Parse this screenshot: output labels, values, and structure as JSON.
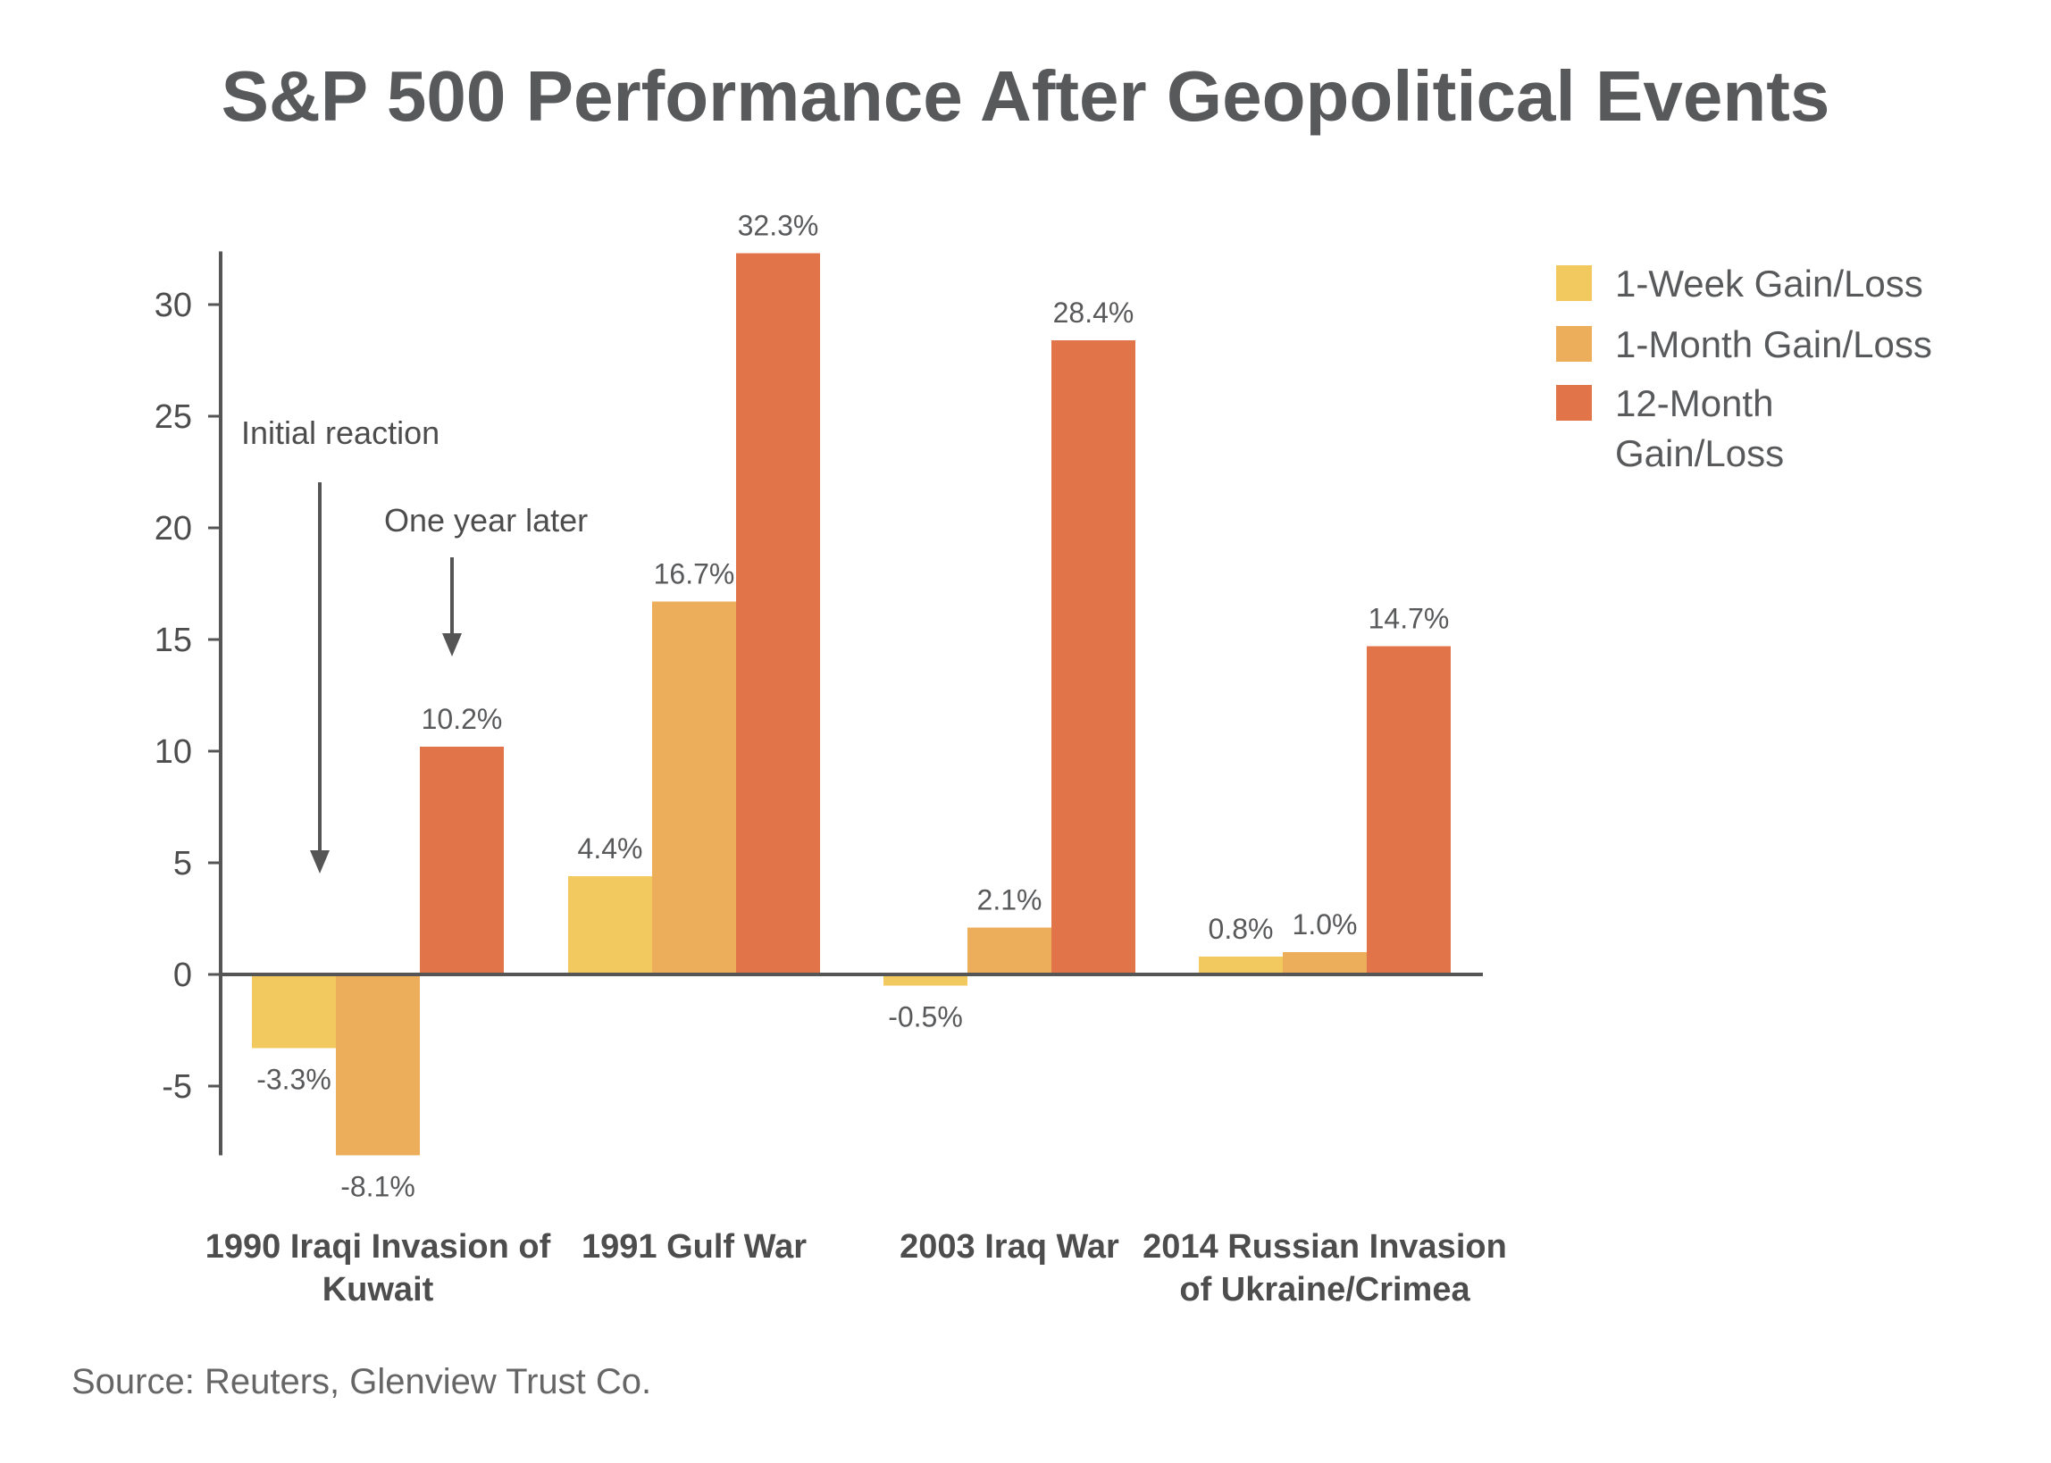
{
  "chart_data": {
    "type": "bar",
    "title": "S&P 500 Performance After Geopolitical Events",
    "categories": [
      [
        "1990 Iraqi Invasion of",
        "Kuwait"
      ],
      [
        "1991 Gulf War"
      ],
      [
        "2003 Iraq War"
      ],
      [
        "2014 Russian Invasion",
        "of Ukraine/Crimea"
      ]
    ],
    "series": [
      {
        "name": "1-Week Gain/Loss",
        "color": "#f2c95f",
        "values": [
          -3.3,
          4.4,
          -0.5,
          0.8
        ],
        "labels": [
          "-3.3%",
          "4.4%",
          "-0.5%",
          "0.8%"
        ]
      },
      {
        "name": "1-Month Gain/Loss",
        "color": "#ecae5b",
        "values": [
          -8.1,
          16.7,
          2.1,
          1.0
        ],
        "labels": [
          "-8.1%",
          "16.7%",
          "2.1%",
          "1.0%"
        ]
      },
      {
        "name": "12-Month Gain/Loss",
        "color": "#e2744a",
        "values": [
          10.2,
          32.3,
          28.4,
          14.7
        ],
        "labels": [
          "10.2%",
          "32.3%",
          "28.4%",
          "14.7%"
        ]
      }
    ],
    "legend_lines": [
      [
        "1-Week Gain/Loss"
      ],
      [
        "1-Month Gain/Loss"
      ],
      [
        "12-Month",
        "Gain/Loss"
      ]
    ],
    "yticks": [
      30,
      25,
      20,
      15,
      10,
      5,
      0,
      -5
    ],
    "ylim": [
      -8.1,
      32.3
    ],
    "legend_position": "top-right",
    "grid": false,
    "annotations": [
      "Initial reaction",
      "One year later"
    ],
    "source": "Source: Reuters, Glenview Trust Co."
  }
}
